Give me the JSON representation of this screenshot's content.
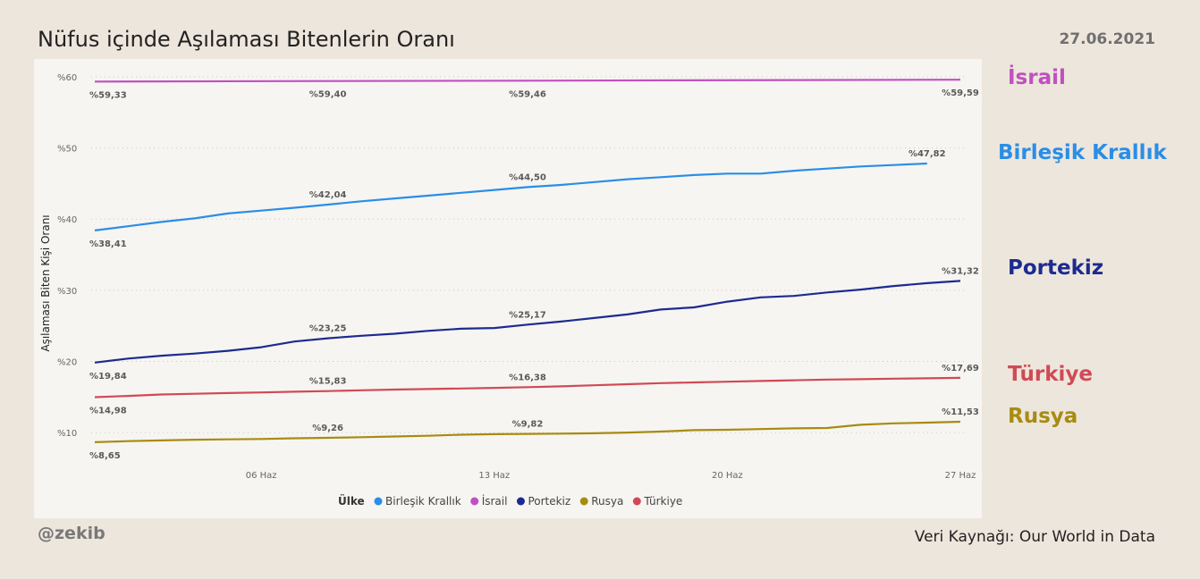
{
  "header": {
    "title": "Nüfus içinde Aşılaması Bitenlerin Oranı",
    "date": "27.06.2021"
  },
  "footer": {
    "handle": "@zekib",
    "source": "Veri Kaynağı: Our World in Data"
  },
  "side_labels": [
    {
      "name": "İsrail",
      "color": "#c050c0"
    },
    {
      "name": "Birleşik Krallık",
      "color": "#2a8ee6"
    },
    {
      "name": "Portekiz",
      "color": "#1d2b8f"
    },
    {
      "name": "Türkiye",
      "color": "#d04a55"
    },
    {
      "name": "Rusya",
      "color": "#a88b12"
    }
  ],
  "chart_data": {
    "type": "line",
    "title": "Nüfus içinde Aşılaması Bitenlerin Oranı",
    "xlabel": "",
    "ylabel": "Aşılaması Biten Kişi Oranı",
    "ylim": [
      6,
      61
    ],
    "y_ticks": [
      10,
      20,
      30,
      40,
      50,
      60
    ],
    "y_tick_labels": [
      "%10",
      "%20",
      "%30",
      "%40",
      "%50",
      "%60"
    ],
    "x_ticks": [
      "06 Haz",
      "13 Haz",
      "20 Haz",
      "27 Haz"
    ],
    "x_tick_days": [
      6,
      13,
      20,
      27
    ],
    "legend_title": "Ülke",
    "legend_position": "bottom",
    "grid": true,
    "series": [
      {
        "name": "Birleşik Krallık",
        "color": "#2a8ee6",
        "x": [
          1,
          2,
          3,
          4,
          5,
          6,
          7,
          8,
          9,
          10,
          11,
          12,
          13,
          14,
          15,
          16,
          17,
          18,
          19,
          20,
          21,
          22,
          23,
          24,
          25,
          26
        ],
        "values": [
          38.41,
          39.0,
          39.6,
          40.1,
          40.8,
          41.2,
          41.6,
          42.04,
          42.5,
          42.9,
          43.3,
          43.7,
          44.1,
          44.5,
          44.8,
          45.2,
          45.6,
          45.9,
          46.2,
          46.4,
          46.4,
          46.8,
          47.1,
          47.4,
          47.6,
          47.82
        ],
        "labels": [
          {
            "x": 1,
            "text": "%38,41"
          },
          {
            "x": 8,
            "text": "%42,04"
          },
          {
            "x": 14,
            "text": "%44,50"
          },
          {
            "x": 26,
            "text": "%47,82"
          }
        ]
      },
      {
        "name": "İsrail",
        "color": "#c050c0",
        "x": [
          1,
          8,
          14,
          27
        ],
        "values": [
          59.33,
          59.4,
          59.46,
          59.59
        ],
        "labels": [
          {
            "x": 1,
            "text": "%59,33"
          },
          {
            "x": 8,
            "text": "%59,40"
          },
          {
            "x": 14,
            "text": "%59,46"
          },
          {
            "x": 27,
            "text": "%59,59"
          }
        ]
      },
      {
        "name": "Portekiz",
        "color": "#1d2b8f",
        "x": [
          1,
          2,
          3,
          4,
          5,
          6,
          7,
          8,
          9,
          10,
          11,
          12,
          13,
          14,
          15,
          16,
          17,
          18,
          19,
          20,
          21,
          22,
          23,
          24,
          25,
          26,
          27
        ],
        "values": [
          19.84,
          20.4,
          20.8,
          21.1,
          21.5,
          22.0,
          22.8,
          23.25,
          23.6,
          23.9,
          24.3,
          24.6,
          24.7,
          25.17,
          25.6,
          26.1,
          26.6,
          27.3,
          27.6,
          28.4,
          29.0,
          29.2,
          29.7,
          30.1,
          30.6,
          31.0,
          31.32
        ],
        "labels": [
          {
            "x": 1,
            "text": "%19,84"
          },
          {
            "x": 8,
            "text": "%23,25"
          },
          {
            "x": 14,
            "text": "%25,17"
          },
          {
            "x": 27,
            "text": "%31,32"
          }
        ]
      },
      {
        "name": "Rusya",
        "color": "#a88b12",
        "x": [
          1,
          2,
          3,
          4,
          5,
          6,
          7,
          8,
          9,
          10,
          11,
          12,
          13,
          14,
          15,
          16,
          17,
          18,
          19,
          20,
          21,
          22,
          23,
          24,
          25,
          26,
          27
        ],
        "values": [
          8.65,
          8.8,
          8.9,
          9.0,
          9.05,
          9.1,
          9.2,
          9.26,
          9.35,
          9.45,
          9.55,
          9.7,
          9.78,
          9.82,
          9.85,
          9.9,
          10.0,
          10.15,
          10.35,
          10.4,
          10.5,
          10.6,
          10.65,
          11.1,
          11.3,
          11.4,
          11.53
        ],
        "labels": [
          {
            "x": 1,
            "text": "%8,65"
          },
          {
            "x": 8,
            "text": "%9,26"
          },
          {
            "x": 14,
            "text": "%9,82"
          },
          {
            "x": 27,
            "text": "%11,53"
          }
        ]
      },
      {
        "name": "Türkiye",
        "color": "#d04a55",
        "x": [
          1,
          2,
          3,
          4,
          5,
          6,
          7,
          8,
          9,
          10,
          11,
          12,
          13,
          14,
          15,
          16,
          17,
          18,
          19,
          20,
          21,
          22,
          23,
          24,
          25,
          26,
          27
        ],
        "values": [
          14.98,
          15.15,
          15.35,
          15.45,
          15.55,
          15.65,
          15.75,
          15.83,
          15.95,
          16.05,
          16.12,
          16.2,
          16.28,
          16.38,
          16.5,
          16.65,
          16.8,
          16.95,
          17.05,
          17.15,
          17.25,
          17.35,
          17.45,
          17.5,
          17.58,
          17.63,
          17.69
        ],
        "labels": [
          {
            "x": 1,
            "text": "%14,98"
          },
          {
            "x": 8,
            "text": "%15,83"
          },
          {
            "x": 14,
            "text": "%16,38"
          },
          {
            "x": 27,
            "text": "%17,69"
          }
        ]
      }
    ]
  }
}
